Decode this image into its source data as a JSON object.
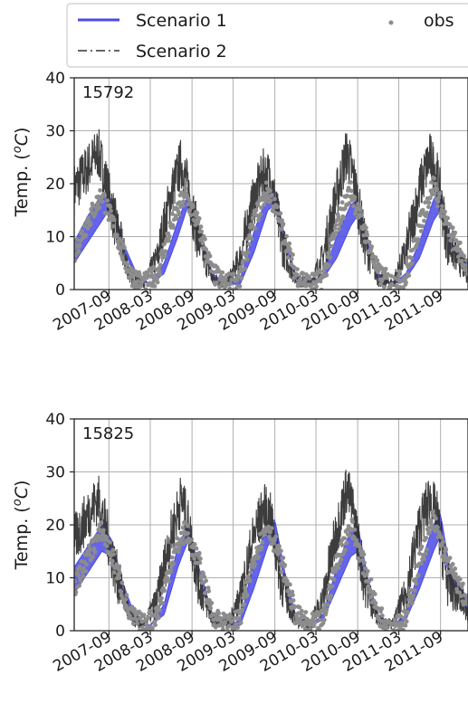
{
  "legend": {
    "entries": [
      {
        "label": "Scenario 1",
        "style": "solid",
        "color": "#4a4ae8"
      },
      {
        "label": "Scenario 2",
        "style": "dashdot",
        "color": "#333333"
      },
      {
        "label": "obs",
        "style": "marker",
        "color": "#8c8c8c"
      }
    ],
    "placement": "top"
  },
  "chart_data": [
    {
      "type": "line",
      "panel_label": "15792",
      "ylabel": "Temp. (oC)",
      "ylabel_parts": {
        "prefix": "Temp. (",
        "superscript": "o",
        "unit": "C)"
      },
      "ylim": [
        0,
        40
      ],
      "yticks": [
        "0",
        "10",
        "20",
        "30",
        "40"
      ],
      "xlim": [
        "2007-04-01",
        "2011-12-31"
      ],
      "xticks": [
        "2007-09",
        "2008-03",
        "2008-09",
        "2009-03",
        "2009-09",
        "2010-03",
        "2010-09",
        "2011-03",
        "2011-09"
      ],
      "grid": true,
      "series": [
        {
          "name": "Scenario 1",
          "kind": "band",
          "color": "#4a4ae8",
          "x": [
            "2007-04-01",
            "2007-06-01",
            "2007-08-01",
            "2007-09-15",
            "2007-11-01",
            "2008-01-01",
            "2008-03-01",
            "2008-05-01",
            "2008-07-01",
            "2008-08-15",
            "2008-10-01",
            "2008-12-01",
            "2009-02-01",
            "2009-04-01",
            "2009-06-01",
            "2009-08-01",
            "2009-09-01",
            "2009-10-15",
            "2009-12-01",
            "2010-02-01",
            "2010-04-01",
            "2010-06-01",
            "2010-08-01",
            "2010-09-01",
            "2010-10-15",
            "2010-12-01",
            "2011-02-01",
            "2011-04-01",
            "2011-06-01",
            "2011-08-01",
            "2011-09-01",
            "2011-10-15",
            "2011-12-31"
          ],
          "lower": [
            5,
            9,
            13,
            16,
            8,
            2,
            1,
            3,
            10,
            16,
            10,
            2,
            1,
            1,
            7,
            15,
            16,
            9,
            2,
            1,
            2,
            6,
            12,
            14,
            8,
            2,
            1,
            2,
            6,
            13,
            15,
            8,
            4
          ],
          "upper": [
            9,
            14,
            18,
            17,
            9,
            3,
            1,
            5,
            13,
            18,
            11,
            3,
            1,
            2,
            11,
            18,
            19,
            10,
            3,
            1,
            3,
            10,
            16,
            17,
            9,
            3,
            1,
            3,
            9,
            17,
            19,
            9,
            5
          ]
        },
        {
          "name": "Scenario 2",
          "kind": "noisy_line",
          "color": "#333333",
          "x": [
            "2007-04-01",
            "2007-06-01",
            "2007-07-15",
            "2007-08-15",
            "2007-10-01",
            "2007-12-01",
            "2008-02-01",
            "2008-04-01",
            "2008-06-01",
            "2008-07-15",
            "2008-08-15",
            "2008-10-01",
            "2008-12-01",
            "2009-02-01",
            "2009-04-01",
            "2009-06-01",
            "2009-07-15",
            "2009-08-15",
            "2009-10-01",
            "2009-12-01",
            "2010-02-01",
            "2010-04-01",
            "2010-06-01",
            "2010-07-15",
            "2010-08-15",
            "2010-10-01",
            "2010-12-01",
            "2011-02-01",
            "2011-04-01",
            "2011-06-01",
            "2011-07-15",
            "2011-08-15",
            "2011-10-01",
            "2011-12-31"
          ],
          "values": [
            19,
            23,
            26,
            21,
            12,
            3,
            1,
            6,
            18,
            24,
            19,
            9,
            2,
            1,
            6,
            17,
            22,
            21,
            9,
            2,
            1,
            6,
            18,
            26,
            21,
            9,
            2,
            1,
            7,
            19,
            25,
            22,
            9,
            3
          ],
          "noise_amplitude": 5
        },
        {
          "name": "obs",
          "kind": "scatter",
          "color": "#8c8c8c",
          "x": [
            "2007-04-01",
            "2007-06-01",
            "2007-08-01",
            "2007-10-01",
            "2007-12-01",
            "2008-02-01",
            "2008-04-01",
            "2008-06-01",
            "2008-08-01",
            "2008-10-01",
            "2008-12-01",
            "2009-02-01",
            "2009-04-01",
            "2009-06-01",
            "2009-08-01",
            "2009-10-01",
            "2009-12-01",
            "2010-02-01",
            "2010-04-01",
            "2010-06-01",
            "2010-08-01",
            "2010-10-01",
            "2010-12-01",
            "2011-02-01",
            "2011-04-01",
            "2011-06-01",
            "2011-08-01",
            "2011-10-01",
            "2011-12-31"
          ],
          "values": [
            7,
            13,
            18,
            11,
            3,
            1,
            3,
            12,
            18,
            12,
            3,
            1,
            2,
            13,
            19,
            12,
            3,
            1,
            2,
            12,
            19,
            11,
            3,
            1,
            2,
            12,
            20,
            12,
            4
          ]
        }
      ]
    },
    {
      "type": "line",
      "panel_label": "15825",
      "ylabel": "Temp. (oC)",
      "ylabel_parts": {
        "prefix": "Temp. (",
        "superscript": "o",
        "unit": "C)"
      },
      "ylim": [
        0,
        40
      ],
      "yticks": [
        "0",
        "10",
        "20",
        "30",
        "40"
      ],
      "xlim": [
        "2007-04-01",
        "2011-12-31"
      ],
      "xticks": [
        "2007-09",
        "2008-03",
        "2008-09",
        "2009-03",
        "2009-09",
        "2010-03",
        "2010-09",
        "2011-03",
        "2011-09"
      ],
      "grid": true,
      "series": [
        {
          "name": "Scenario 1",
          "kind": "band",
          "color": "#4a4ae8",
          "x": [
            "2007-04-01",
            "2007-06-01",
            "2007-08-01",
            "2007-09-15",
            "2007-11-01",
            "2008-01-01",
            "2008-03-01",
            "2008-05-01",
            "2008-07-01",
            "2008-08-15",
            "2008-10-01",
            "2008-12-01",
            "2009-02-01",
            "2009-04-01",
            "2009-06-01",
            "2009-08-01",
            "2009-09-01",
            "2009-10-15",
            "2009-12-01",
            "2010-02-01",
            "2010-04-01",
            "2010-06-01",
            "2010-08-01",
            "2010-09-01",
            "2010-10-15",
            "2010-12-01",
            "2011-02-01",
            "2011-04-01",
            "2011-06-01",
            "2011-08-01",
            "2011-09-01",
            "2011-10-15",
            "2011-12-31"
          ],
          "lower": [
            7,
            11,
            15,
            14,
            7,
            1,
            1,
            3,
            12,
            17,
            10,
            2,
            1,
            1,
            8,
            16,
            18,
            9,
            2,
            1,
            2,
            8,
            14,
            15,
            8,
            2,
            1,
            2,
            8,
            15,
            18,
            9,
            4
          ],
          "upper": [
            12,
            16,
            20,
            17,
            9,
            2,
            1,
            5,
            16,
            20,
            12,
            3,
            1,
            2,
            13,
            20,
            21,
            11,
            3,
            1,
            3,
            12,
            19,
            20,
            10,
            3,
            1,
            3,
            12,
            20,
            22,
            11,
            6
          ]
        },
        {
          "name": "Scenario 2",
          "kind": "noisy_line",
          "color": "#333333",
          "x": [
            "2007-04-01",
            "2007-06-01",
            "2007-07-15",
            "2007-08-15",
            "2007-10-01",
            "2007-12-01",
            "2008-02-01",
            "2008-04-01",
            "2008-06-01",
            "2008-07-15",
            "2008-08-15",
            "2008-10-01",
            "2008-12-01",
            "2009-02-01",
            "2009-04-01",
            "2009-06-01",
            "2009-07-15",
            "2009-08-15",
            "2009-10-01",
            "2009-12-01",
            "2010-02-01",
            "2010-04-01",
            "2010-06-01",
            "2010-07-15",
            "2010-08-15",
            "2010-10-01",
            "2010-12-01",
            "2011-02-01",
            "2011-04-01",
            "2011-06-01",
            "2011-07-15",
            "2011-08-15",
            "2011-10-01",
            "2011-12-31"
          ],
          "values": [
            17,
            22,
            25,
            20,
            11,
            3,
            1,
            6,
            18,
            25,
            20,
            9,
            2,
            1,
            6,
            18,
            23,
            21,
            9,
            2,
            1,
            6,
            19,
            27,
            22,
            9,
            2,
            1,
            7,
            20,
            25,
            22,
            9,
            4
          ],
          "noise_amplitude": 5
        },
        {
          "name": "obs",
          "kind": "scatter",
          "color": "#8c8c8c",
          "x": [
            "2007-04-01",
            "2007-06-01",
            "2007-08-01",
            "2007-10-01",
            "2007-12-01",
            "2008-02-01",
            "2008-04-01",
            "2008-06-01",
            "2008-08-01",
            "2008-10-01",
            "2008-12-01",
            "2009-02-01",
            "2009-04-01",
            "2009-06-01",
            "2009-08-01",
            "2009-10-01",
            "2009-12-01",
            "2010-02-01",
            "2010-04-01",
            "2010-06-01",
            "2010-08-01",
            "2010-10-01",
            "2010-12-01",
            "2011-02-01",
            "2011-04-01",
            "2011-06-01",
            "2011-08-01",
            "2011-10-01",
            "2011-12-31"
          ],
          "values": [
            8,
            14,
            19,
            12,
            3,
            1,
            3,
            13,
            19,
            13,
            3,
            1,
            2,
            14,
            20,
            13,
            3,
            1,
            2,
            13,
            20,
            12,
            3,
            1,
            2,
            13,
            21,
            13,
            5
          ]
        }
      ]
    }
  ]
}
